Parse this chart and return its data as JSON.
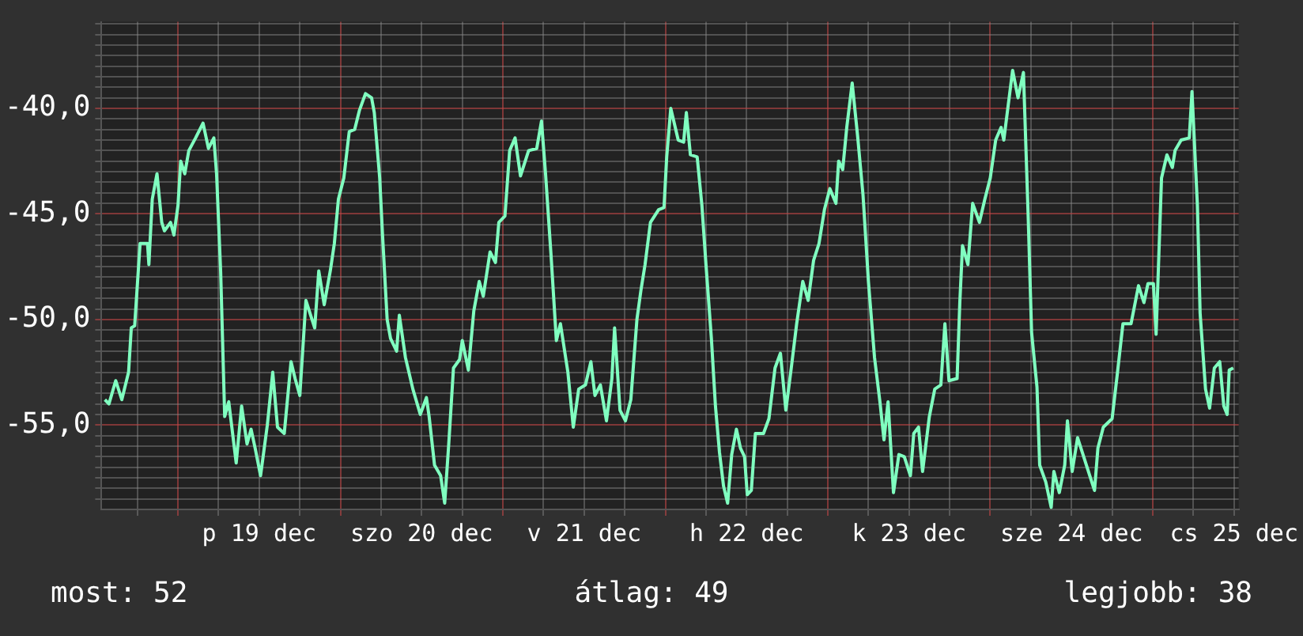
{
  "chart_data": {
    "type": "line",
    "annotations": [
      "most: 52",
      "átlag: 49",
      "legjobb: 38"
    ],
    "x": [
      "--12-18T13:12",
      "--12-18T13:48",
      "--12-18T14:48",
      "--12-18T15:42",
      "--12-18T16:42",
      "--12-18T17:06",
      "--12-18T17:36",
      "--12-18T18:24",
      "--12-18T19:30",
      "--12-18T19:42",
      "--12-18T20:12",
      "--12-18T20:54",
      "--12-18T21:36",
      "--12-18T22:00",
      "--12-18T22:54",
      "--12-18T23:24",
      "--12-19T00:00",
      "--12-19T00:24",
      "--12-19T01:00",
      "--12-19T01:36",
      "--12-19T02:36",
      "--12-19T03:42",
      "--12-19T04:30",
      "--12-19T05:18",
      "--12-19T05:42",
      "--12-19T06:18",
      "--12-19T06:54",
      "--12-19T07:30",
      "--12-19T08:36",
      "--12-19T09:24",
      "--12-19T10:12",
      "--12-19T10:48",
      "--12-19T11:24",
      "--12-19T12:12",
      "--12-19T13:12",
      "--12-19T14:00",
      "--12-19T14:42",
      "--12-19T15:42",
      "--12-19T16:42",
      "--12-19T17:18",
      "--12-19T18:00",
      "--12-19T18:54",
      "--12-19T20:12",
      "--12-19T20:48",
      "--12-19T21:36",
      "--12-19T22:30",
      "--12-19T23:06",
      "--12-19T23:42",
      "--12-20T00:30",
      "--12-20T01:18",
      "--12-20T02:06",
      "--12-20T02:48",
      "--12-20T03:42",
      "--12-20T04:36",
      "--12-20T05:00",
      "--12-20T05:48",
      "--12-20T06:12",
      "--12-20T06:54",
      "--12-20T07:24",
      "--12-20T08:18",
      "--12-20T08:42",
      "--12-20T09:36",
      "--12-20T10:42",
      "--12-20T11:48",
      "--12-20T12:42",
      "--12-20T13:06",
      "--12-20T13:54",
      "--12-20T14:48",
      "--12-20T15:24",
      "--12-20T16:00",
      "--12-20T16:42",
      "--12-20T17:36",
      "--12-20T18:00",
      "--12-20T18:54",
      "--12-20T19:42",
      "--12-20T20:30",
      "--12-20T21:06",
      "--12-20T22:06",
      "--12-20T22:54",
      "--12-20T23:24",
      "--12-21T00:18",
      "--12-21T01:00",
      "--12-21T01:48",
      "--12-21T02:36",
      "--12-21T03:48",
      "--12-21T05:00",
      "--12-21T05:42",
      "--12-21T06:18",
      "--12-21T07:06",
      "--12-21T07:54",
      "--12-21T08:30",
      "--12-21T09:36",
      "--12-21T10:24",
      "--12-21T11:12",
      "--12-21T12:12",
      "--12-21T13:00",
      "--12-21T13:36",
      "--12-21T14:24",
      "--12-21T15:18",
      "--12-21T16:06",
      "--12-21T16:30",
      "--12-21T17:18",
      "--12-21T18:06",
      "--12-21T18:54",
      "--12-21T19:48",
      "--12-21T20:24",
      "--12-21T21:00",
      "--12-21T21:48",
      "--12-21T23:00",
      "--12-21T23:48",
      "--12-22T00:12",
      "--12-22T00:48",
      "--12-22T01:54",
      "--12-22T02:42",
      "--12-22T03:06",
      "--12-22T03:42",
      "--12-22T04:42",
      "--12-22T05:24",
      "--12-22T06:00",
      "--12-22T06:48",
      "--12-22T07:24",
      "--12-22T08:00",
      "--12-22T08:36",
      "--12-22T09:12",
      "--12-22T09:48",
      "--12-22T10:30",
      "--12-22T11:06",
      "--12-22T11:42",
      "--12-22T12:06",
      "--12-22T12:42",
      "--12-22T13:18",
      "--12-22T14:30",
      "--12-22T15:18",
      "--12-22T16:12",
      "--12-22T17:00",
      "--12-22T17:48",
      "--12-22T18:36",
      "--12-22T19:24",
      "--12-22T20:18",
      "--12-22T21:06",
      "--12-22T21:54",
      "--12-22T22:42",
      "--12-22T23:30",
      "--12-23T00:18",
      "--12-23T01:12",
      "--12-23T01:36",
      "--12-23T02:12",
      "--12-23T02:48",
      "--12-23T03:36",
      "--12-23T04:24",
      "--12-23T05:12",
      "--12-23T06:00",
      "--12-23T06:54",
      "--12-23T07:42",
      "--12-23T08:18",
      "--12-23T08:54",
      "--12-23T09:42",
      "--12-23T10:30",
      "--12-23T11:18",
      "--12-23T12:12",
      "--12-23T12:42",
      "--12-23T13:24",
      "--12-23T14:00",
      "--12-23T15:00",
      "--12-23T15:48",
      "--12-23T16:42",
      "--12-23T17:18",
      "--12-23T17:54",
      "--12-23T19:06",
      "--12-23T19:30",
      "--12-23T19:54",
      "--12-23T20:42",
      "--12-23T21:24",
      "--12-23T22:24",
      "--12-23T23:12",
      "--12-24T00:00",
      "--12-24T00:48",
      "--12-24T01:36",
      "--12-24T02:00",
      "--12-24T03:18",
      "--12-24T04:06",
      "--12-24T04:54",
      "--12-24T05:36",
      "--12-24T06:06",
      "--12-24T06:54",
      "--12-24T07:18",
      "--12-24T08:12",
      "--12-24T09:00",
      "--12-24T09:24",
      "--12-24T10:12",
      "--12-24T11:00",
      "--12-24T11:24",
      "--12-24T12:06",
      "--12-24T12:54",
      "--12-24T13:42",
      "--12-24T14:42",
      "--12-24T15:24",
      "--12-24T15:54",
      "--12-24T16:42",
      "--12-24T18:00",
      "--12-24T18:48",
      "--12-24T19:36",
      "--12-24T20:48",
      "--12-24T21:54",
      "--12-24T22:42",
      "--12-24T23:18",
      "--12-25T00:06",
      "--12-25T00:30",
      "--12-25T00:54",
      "--12-25T01:18",
      "--12-25T02:06",
      "--12-25T02:54",
      "--12-25T03:18",
      "--12-25T04:12",
      "--12-25T05:24",
      "--12-25T05:48",
      "--12-25T06:36",
      "--12-25T07:00",
      "--12-25T07:48",
      "--12-25T08:24",
      "--12-25T09:06",
      "--12-25T09:54",
      "--12-25T10:30",
      "--12-25T11:00",
      "--12-25T11:18",
      "--12-25T11:54"
    ],
    "series": [
      {
        "color": "#80ffc0",
        "values": [
          -53.8,
          -54.0,
          -52.9,
          -53.8,
          -52.5,
          -50.4,
          -50.3,
          -46.4,
          -46.4,
          -47.4,
          -44.3,
          -43.1,
          -45.4,
          -45.8,
          -45.4,
          -46.0,
          -44.6,
          -42.5,
          -43.1,
          -42.0,
          -41.4,
          -40.7,
          -41.9,
          -41.4,
          -43.1,
          -47.7,
          -54.6,
          -53.9,
          -56.8,
          -54.1,
          -55.9,
          -55.2,
          -56.1,
          -57.4,
          -55.0,
          -52.5,
          -55.1,
          -55.4,
          -52.0,
          -52.8,
          -53.6,
          -49.1,
          -50.4,
          -47.7,
          -49.3,
          -47.7,
          -46.4,
          -44.3,
          -43.3,
          -41.1,
          -41.0,
          -40.1,
          -39.3,
          -39.5,
          -40.2,
          -43.3,
          -45.9,
          -50.0,
          -50.9,
          -51.5,
          -49.8,
          -51.8,
          -53.3,
          -54.5,
          -53.7,
          -54.6,
          -56.9,
          -57.4,
          -58.7,
          -55.9,
          -52.3,
          -51.9,
          -51.0,
          -52.4,
          -49.6,
          -48.2,
          -48.9,
          -46.8,
          -47.3,
          -45.4,
          -45.1,
          -42.0,
          -41.4,
          -43.2,
          -42.0,
          -41.9,
          -40.6,
          -43.1,
          -46.9,
          -51.0,
          -50.2,
          -52.5,
          -55.1,
          -53.3,
          -53.1,
          -52.0,
          -53.6,
          -53.1,
          -54.8,
          -52.8,
          -50.4,
          -54.3,
          -54.8,
          -53.8,
          -50.0,
          -48.6,
          -47.4,
          -45.4,
          -44.8,
          -44.7,
          -42.3,
          -40.0,
          -41.5,
          -41.6,
          -40.2,
          -42.2,
          -42.3,
          -44.6,
          -47.4,
          -50.9,
          -54.1,
          -56.3,
          -57.9,
          -58.7,
          -56.4,
          -55.2,
          -56.1,
          -56.5,
          -58.3,
          -58.1,
          -55.4,
          -55.4,
          -54.7,
          -52.3,
          -51.6,
          -54.3,
          -52.3,
          -50.2,
          -48.2,
          -49.1,
          -47.2,
          -46.4,
          -44.8,
          -43.8,
          -44.5,
          -42.5,
          -42.9,
          -40.9,
          -38.8,
          -41.3,
          -44.1,
          -48.2,
          -51.8,
          -53.9,
          -55.7,
          -53.9,
          -58.2,
          -56.4,
          -56.5,
          -57.4,
          -55.4,
          -55.1,
          -57.2,
          -54.6,
          -53.3,
          -53.1,
          -50.2,
          -52.9,
          -52.8,
          -49.2,
          -46.5,
          -47.4,
          -44.5,
          -45.4,
          -44.3,
          -43.3,
          -41.5,
          -40.9,
          -41.5,
          -38.2,
          -39.5,
          -38.3,
          -45.1,
          -50.6,
          -53.2,
          -56.9,
          -57.7,
          -58.9,
          -57.2,
          -58.2,
          -56.9,
          -54.8,
          -57.2,
          -55.6,
          -56.4,
          -57.4,
          -58.1,
          -56.1,
          -55.1,
          -54.7,
          -52.5,
          -50.2,
          -50.2,
          -48.4,
          -49.2,
          -48.3,
          -48.3,
          -50.7,
          -47.0,
          -43.3,
          -42.2,
          -42.8,
          -42.0,
          -41.5,
          -41.4,
          -39.2,
          -44.6,
          -49.7,
          -53.3,
          -54.2,
          -52.3,
          -52.0,
          -54.1,
          -54.5,
          -52.4,
          -52.3
        ]
      }
    ],
    "xlim": [
      "--12-18T12:42",
      "--12-25T12:42"
    ],
    "xticks": [
      {
        "value": "--12-18T18:00",
        "label": null
      },
      {
        "value": "--12-19T00:00",
        "label": null
      },
      {
        "value": "--12-19T06:00",
        "label": null
      },
      {
        "value": "--12-19T12:00",
        "label": "p 19 dec"
      },
      {
        "value": "--12-19T18:00",
        "label": null
      },
      {
        "value": "--12-20T00:00",
        "label": null
      },
      {
        "value": "--12-20T06:00",
        "label": null
      },
      {
        "value": "--12-20T12:00",
        "label": "szo 20 dec"
      },
      {
        "value": "--12-20T18:00",
        "label": null
      },
      {
        "value": "--12-21T00:00",
        "label": null
      },
      {
        "value": "--12-21T06:00",
        "label": null
      },
      {
        "value": "--12-21T12:00",
        "label": "v 21 dec"
      },
      {
        "value": "--12-21T18:00",
        "label": null
      },
      {
        "value": "--12-22T00:00",
        "label": null
      },
      {
        "value": "--12-22T06:00",
        "label": null
      },
      {
        "value": "--12-22T12:00",
        "label": "h 22 dec"
      },
      {
        "value": "--12-22T18:00",
        "label": null
      },
      {
        "value": "--12-23T00:00",
        "label": null
      },
      {
        "value": "--12-23T06:00",
        "label": null
      },
      {
        "value": "--12-23T12:00",
        "label": "k 23 dec"
      },
      {
        "value": "--12-23T18:00",
        "label": null
      },
      {
        "value": "--12-24T00:00",
        "label": null
      },
      {
        "value": "--12-24T06:00",
        "label": null
      },
      {
        "value": "--12-24T12:00",
        "label": "sze 24 dec"
      },
      {
        "value": "--12-24T18:00",
        "label": null
      },
      {
        "value": "--12-25T00:00",
        "label": null
      },
      {
        "value": "--12-25T06:00",
        "label": null
      },
      {
        "value": "--12-25T12:00",
        "label": "cs 25 dec"
      }
    ],
    "ylim": [
      -59,
      -35.9
    ],
    "yticks": [
      {
        "value": -58.5,
        "label": null
      },
      {
        "value": -58,
        "label": null
      },
      {
        "value": -57.5,
        "label": null
      },
      {
        "value": -57,
        "label": null
      },
      {
        "value": -56.5,
        "label": null
      },
      {
        "value": -56,
        "label": null
      },
      {
        "value": -55.5,
        "label": null
      },
      {
        "value": -55,
        "label": "-55,0"
      },
      {
        "value": -54.5,
        "label": null
      },
      {
        "value": -54,
        "label": null
      },
      {
        "value": -53.5,
        "label": null
      },
      {
        "value": -53,
        "label": null
      },
      {
        "value": -52.5,
        "label": null
      },
      {
        "value": -52,
        "label": null
      },
      {
        "value": -51.5,
        "label": null
      },
      {
        "value": -51,
        "label": null
      },
      {
        "value": -50.5,
        "label": null
      },
      {
        "value": -50,
        "label": "-50,0"
      },
      {
        "value": -49.5,
        "label": null
      },
      {
        "value": -49,
        "label": null
      },
      {
        "value": -48.5,
        "label": null
      },
      {
        "value": -48,
        "label": null
      },
      {
        "value": -47.5,
        "label": null
      },
      {
        "value": -47,
        "label": null
      },
      {
        "value": -46.5,
        "label": null
      },
      {
        "value": -46,
        "label": null
      },
      {
        "value": -45.5,
        "label": null
      },
      {
        "value": -45,
        "label": "-45,0"
      },
      {
        "value": -44.5,
        "label": null
      },
      {
        "value": -44,
        "label": null
      },
      {
        "value": -43.5,
        "label": null
      },
      {
        "value": -43,
        "label": null
      },
      {
        "value": -42.5,
        "label": null
      },
      {
        "value": -42,
        "label": null
      },
      {
        "value": -41.5,
        "label": null
      },
      {
        "value": -41,
        "label": null
      },
      {
        "value": -40.5,
        "label": null
      },
      {
        "value": -40,
        "label": "-40,0"
      },
      {
        "value": -39.5,
        "label": null
      },
      {
        "value": -39,
        "label": null
      },
      {
        "value": -38.5,
        "label": null
      },
      {
        "value": -38,
        "label": null
      },
      {
        "value": -37.5,
        "label": null
      },
      {
        "value": -37,
        "label": null
      },
      {
        "value": -36.5,
        "label": null
      },
      {
        "value": -36,
        "label": null
      }
    ],
    "grid": true,
    "legend": false,
    "marker": "none",
    "line_style": "solid"
  }
}
